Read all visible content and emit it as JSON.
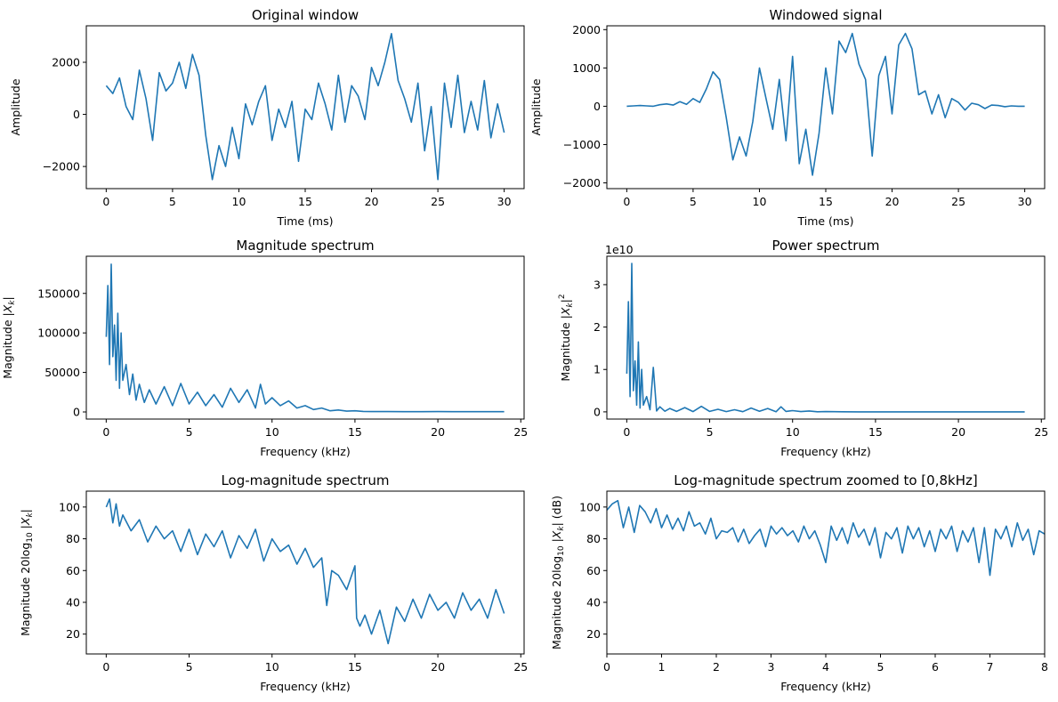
{
  "figure": {
    "background": "#ffffff",
    "line_color": "#1f77b4"
  },
  "chart_data": [
    {
      "type": "line",
      "title": "Original window",
      "xlabel": "Time (ms)",
      "ylabel": "Amplitude",
      "xlim": [
        -1.5,
        31.5
      ],
      "ylim": [
        -2850,
        3400
      ],
      "xticks": [
        0,
        5,
        10,
        15,
        20,
        25,
        30
      ],
      "xtick_labels": [
        "0",
        "5",
        "10",
        "15",
        "20",
        "25",
        "30"
      ],
      "yticks": [
        -2000,
        0,
        2000
      ],
      "ytick_labels": [
        "−2000",
        "0",
        "2000"
      ],
      "grid": false,
      "x": [
        0,
        0.5,
        1,
        1.5,
        2,
        2.5,
        3,
        3.5,
        4,
        4.5,
        5,
        5.5,
        6,
        6.5,
        7,
        7.5,
        8,
        8.5,
        9,
        9.5,
        10,
        10.5,
        11,
        11.5,
        12,
        12.5,
        13,
        13.5,
        14,
        14.5,
        15,
        15.5,
        16,
        16.5,
        17,
        17.5,
        18,
        18.5,
        19,
        19.5,
        20,
        20.5,
        21,
        21.5,
        22,
        22.5,
        23,
        23.5,
        24,
        24.5,
        25,
        25.5,
        26,
        26.5,
        27,
        27.5,
        28,
        28.5,
        29,
        29.5,
        30
      ],
      "y": [
        1100,
        800,
        1400,
        300,
        -200,
        1700,
        600,
        -1000,
        1600,
        900,
        1200,
        2000,
        1000,
        2300,
        1500,
        -800,
        -2500,
        -1200,
        -2000,
        -500,
        -1700,
        400,
        -400,
        500,
        1100,
        -1000,
        200,
        -500,
        500,
        -1800,
        200,
        -200,
        1200,
        400,
        -600,
        1500,
        -300,
        1100,
        700,
        -200,
        1800,
        1100,
        2000,
        3100,
        1300,
        600,
        -300,
        1200,
        -1400,
        300,
        -2500,
        1200,
        -500,
        1500,
        -700,
        500,
        -600,
        1300,
        -900,
        400,
        -700
      ]
    },
    {
      "type": "line",
      "title": "Windowed signal",
      "xlabel": "Time (ms)",
      "ylabel": "Amplitude",
      "xlim": [
        -1.5,
        31.5
      ],
      "ylim": [
        -2150,
        2100
      ],
      "xticks": [
        0,
        5,
        10,
        15,
        20,
        25,
        30
      ],
      "xtick_labels": [
        "0",
        "5",
        "10",
        "15",
        "20",
        "25",
        "30"
      ],
      "yticks": [
        -2000,
        -1000,
        0,
        1000,
        2000
      ],
      "ytick_labels": [
        "−2000",
        "−1000",
        "0",
        "1000",
        "2000"
      ],
      "grid": false,
      "x": [
        0,
        0.5,
        1,
        1.5,
        2,
        2.5,
        3,
        3.5,
        4,
        4.5,
        5,
        5.5,
        6,
        6.5,
        7,
        7.5,
        8,
        8.5,
        9,
        9.5,
        10,
        10.5,
        11,
        11.5,
        12,
        12.5,
        13,
        13.5,
        14,
        14.5,
        15,
        15.5,
        16,
        16.5,
        17,
        17.5,
        18,
        18.5,
        19,
        19.5,
        20,
        20.5,
        21,
        21.5,
        22,
        22.5,
        23,
        23.5,
        24,
        24.5,
        25,
        25.5,
        26,
        26.5,
        27,
        27.5,
        28,
        28.5,
        29,
        29.5,
        30
      ],
      "y": [
        0,
        10,
        20,
        10,
        0,
        40,
        60,
        30,
        120,
        50,
        200,
        100,
        450,
        900,
        700,
        -300,
        -1400,
        -800,
        -1300,
        -400,
        1000,
        200,
        -600,
        700,
        -900,
        1300,
        -1500,
        -600,
        -1800,
        -700,
        1000,
        -200,
        1700,
        1400,
        1900,
        1100,
        700,
        -1300,
        800,
        1300,
        -200,
        1600,
        1900,
        1500,
        300,
        400,
        -200,
        300,
        -300,
        200,
        100,
        -100,
        80,
        40,
        -60,
        30,
        20,
        -10,
        10,
        0,
        0
      ]
    },
    {
      "type": "line",
      "title": "Magnitude spectrum",
      "xlabel": "Frequency (kHz)",
      "ylabel": "Magnitude |X_k|",
      "xlim": [
        -1.2,
        25.2
      ],
      "ylim": [
        -9000,
        197000
      ],
      "xticks": [
        0,
        5,
        10,
        15,
        20,
        25
      ],
      "xtick_labels": [
        "0",
        "5",
        "10",
        "15",
        "20",
        "25"
      ],
      "yticks": [
        0,
        50000,
        100000,
        150000
      ],
      "ytick_labels": [
        "0",
        "50000",
        "100000",
        "150000"
      ],
      "grid": false,
      "x": [
        0,
        0.1,
        0.2,
        0.3,
        0.4,
        0.5,
        0.6,
        0.7,
        0.8,
        0.9,
        1.0,
        1.2,
        1.4,
        1.6,
        1.8,
        2.0,
        2.3,
        2.6,
        3.0,
        3.5,
        4.0,
        4.5,
        5.0,
        5.5,
        6.0,
        6.5,
        7.0,
        7.5,
        8.0,
        8.5,
        9.0,
        9.3,
        9.6,
        10.0,
        10.5,
        11.0,
        11.5,
        12.0,
        12.5,
        13.0,
        13.5,
        14.0,
        14.5,
        15.0,
        15.5,
        16,
        17,
        18,
        19,
        20,
        21,
        22,
        23,
        24
      ],
      "y": [
        95000,
        160000,
        60000,
        187000,
        70000,
        110000,
        40000,
        125000,
        30000,
        100000,
        40000,
        60000,
        22000,
        48000,
        15000,
        35000,
        12000,
        28000,
        10000,
        32000,
        8000,
        36000,
        10000,
        25000,
        8000,
        22000,
        6000,
        30000,
        12000,
        28000,
        5000,
        35000,
        10000,
        18000,
        8000,
        14000,
        5000,
        8000,
        3000,
        5000,
        1500,
        2500,
        1000,
        1500,
        700,
        500,
        400,
        300,
        300,
        400,
        300,
        300,
        300,
        300
      ]
    },
    {
      "type": "line",
      "title": "Power spectrum",
      "title_offset_label": "1e10",
      "xlabel": "Frequency (kHz)",
      "ylabel": "Magnitude |X_k|^2",
      "xlim": [
        -1.2,
        25.2
      ],
      "ylim": [
        -0.17,
        3.67
      ],
      "xticks": [
        0,
        5,
        10,
        15,
        20,
        25
      ],
      "xtick_labels": [
        "0",
        "5",
        "10",
        "15",
        "20",
        "25"
      ],
      "yticks": [
        0,
        1,
        2,
        3
      ],
      "ytick_labels": [
        "0",
        "1",
        "2",
        "3"
      ],
      "grid": false,
      "x": [
        0,
        0.1,
        0.2,
        0.3,
        0.4,
        0.5,
        0.6,
        0.7,
        0.8,
        0.9,
        1.0,
        1.2,
        1.4,
        1.6,
        1.8,
        2.0,
        2.3,
        2.6,
        3.0,
        3.5,
        4.0,
        4.5,
        5.0,
        5.5,
        6.0,
        6.5,
        7.0,
        7.5,
        8.0,
        8.5,
        9.0,
        9.3,
        9.6,
        10.0,
        10.5,
        11.0,
        11.5,
        12.0,
        13.0,
        14.0,
        15.0,
        16,
        18,
        20,
        22,
        24
      ],
      "y": [
        0.9,
        2.6,
        0.36,
        3.5,
        0.5,
        1.2,
        0.16,
        1.65,
        0.09,
        1.0,
        0.16,
        0.36,
        0.05,
        1.05,
        0.02,
        0.12,
        0.015,
        0.08,
        0.01,
        0.1,
        0.006,
        0.13,
        0.01,
        0.06,
        0.006,
        0.05,
        0.004,
        0.09,
        0.015,
        0.08,
        0.003,
        0.12,
        0.01,
        0.03,
        0.006,
        0.02,
        0.003,
        0.006,
        0.002,
        0.001,
        0.001,
        0.001,
        0.001,
        0.001,
        0.001,
        0.001
      ]
    },
    {
      "type": "line",
      "title": "Log-magnitude spectrum",
      "xlabel": "Frequency (kHz)",
      "ylabel": "Magnitude 20log_10 |X_k|",
      "xlim": [
        -1.2,
        25.2
      ],
      "ylim": [
        7.5,
        110
      ],
      "xticks": [
        0,
        5,
        10,
        15,
        20,
        25
      ],
      "xtick_labels": [
        "0",
        "5",
        "10",
        "15",
        "20",
        "25"
      ],
      "yticks": [
        20,
        40,
        60,
        80,
        100
      ],
      "ytick_labels": [
        "20",
        "40",
        "60",
        "80",
        "100"
      ],
      "grid": false,
      "x": [
        0,
        0.2,
        0.4,
        0.6,
        0.8,
        1.0,
        1.5,
        2.0,
        2.5,
        3.0,
        3.5,
        4.0,
        4.5,
        5.0,
        5.5,
        6.0,
        6.5,
        7.0,
        7.5,
        8.0,
        8.5,
        9.0,
        9.5,
        10.0,
        10.5,
        11.0,
        11.5,
        12.0,
        12.5,
        13.0,
        13.3,
        13.6,
        14.0,
        14.5,
        15.0,
        15.1,
        15.3,
        15.6,
        16.0,
        16.5,
        17.0,
        17.5,
        18.0,
        18.5,
        19.0,
        19.5,
        20.0,
        20.5,
        21.0,
        21.5,
        22.0,
        22.5,
        23.0,
        23.5,
        24.0
      ],
      "y": [
        100,
        105,
        90,
        102,
        88,
        95,
        85,
        92,
        78,
        88,
        80,
        85,
        72,
        86,
        70,
        83,
        75,
        85,
        68,
        82,
        74,
        86,
        66,
        80,
        72,
        76,
        64,
        74,
        62,
        68,
        38,
        60,
        57,
        48,
        63,
        30,
        25,
        32,
        20,
        35,
        14,
        37,
        28,
        42,
        30,
        45,
        35,
        40,
        30,
        46,
        35,
        42,
        30,
        48,
        33
      ]
    },
    {
      "type": "line",
      "title": "Log-magnitude spectrum zoomed to [0,8kHz]",
      "xlabel": "Frequency (kHz)",
      "ylabel": "Magnitude 20log_10 |X_k| (dB)",
      "xlim": [
        0,
        8
      ],
      "ylim": [
        7.5,
        110
      ],
      "xticks": [
        0,
        1,
        2,
        3,
        4,
        5,
        6,
        7,
        8
      ],
      "xtick_labels": [
        "0",
        "1",
        "2",
        "3",
        "4",
        "5",
        "6",
        "7",
        "8"
      ],
      "yticks": [
        20,
        40,
        60,
        80,
        100
      ],
      "ytick_labels": [
        "20",
        "40",
        "60",
        "80",
        "100"
      ],
      "grid": false,
      "x": [
        0,
        0.1,
        0.2,
        0.3,
        0.4,
        0.5,
        0.6,
        0.7,
        0.8,
        0.9,
        1.0,
        1.1,
        1.2,
        1.3,
        1.4,
        1.5,
        1.6,
        1.7,
        1.8,
        1.9,
        2.0,
        2.1,
        2.2,
        2.3,
        2.4,
        2.5,
        2.6,
        2.7,
        2.8,
        2.9,
        3.0,
        3.1,
        3.2,
        3.3,
        3.4,
        3.5,
        3.6,
        3.7,
        3.8,
        3.9,
        4.0,
        4.1,
        4.2,
        4.3,
        4.4,
        4.5,
        4.6,
        4.7,
        4.8,
        4.9,
        5.0,
        5.1,
        5.2,
        5.3,
        5.4,
        5.5,
        5.6,
        5.7,
        5.8,
        5.9,
        6.0,
        6.1,
        6.2,
        6.3,
        6.4,
        6.5,
        6.6,
        6.7,
        6.8,
        6.9,
        7.0,
        7.1,
        7.2,
        7.3,
        7.4,
        7.5,
        7.6,
        7.7,
        7.8,
        7.9,
        8.0
      ],
      "y": [
        98,
        102,
        104,
        87,
        100,
        84,
        101,
        97,
        90,
        99,
        87,
        95,
        86,
        93,
        85,
        97,
        88,
        90,
        83,
        93,
        80,
        85,
        84,
        87,
        78,
        86,
        77,
        82,
        86,
        75,
        88,
        83,
        87,
        82,
        85,
        78,
        88,
        80,
        85,
        76,
        65,
        88,
        79,
        87,
        77,
        90,
        81,
        86,
        76,
        87,
        68,
        84,
        80,
        87,
        71,
        88,
        80,
        87,
        75,
        85,
        72,
        86,
        80,
        88,
        72,
        85,
        78,
        87,
        65,
        87,
        57,
        86,
        80,
        88,
        75,
        90,
        79,
        86,
        70,
        85,
        83
      ]
    }
  ]
}
